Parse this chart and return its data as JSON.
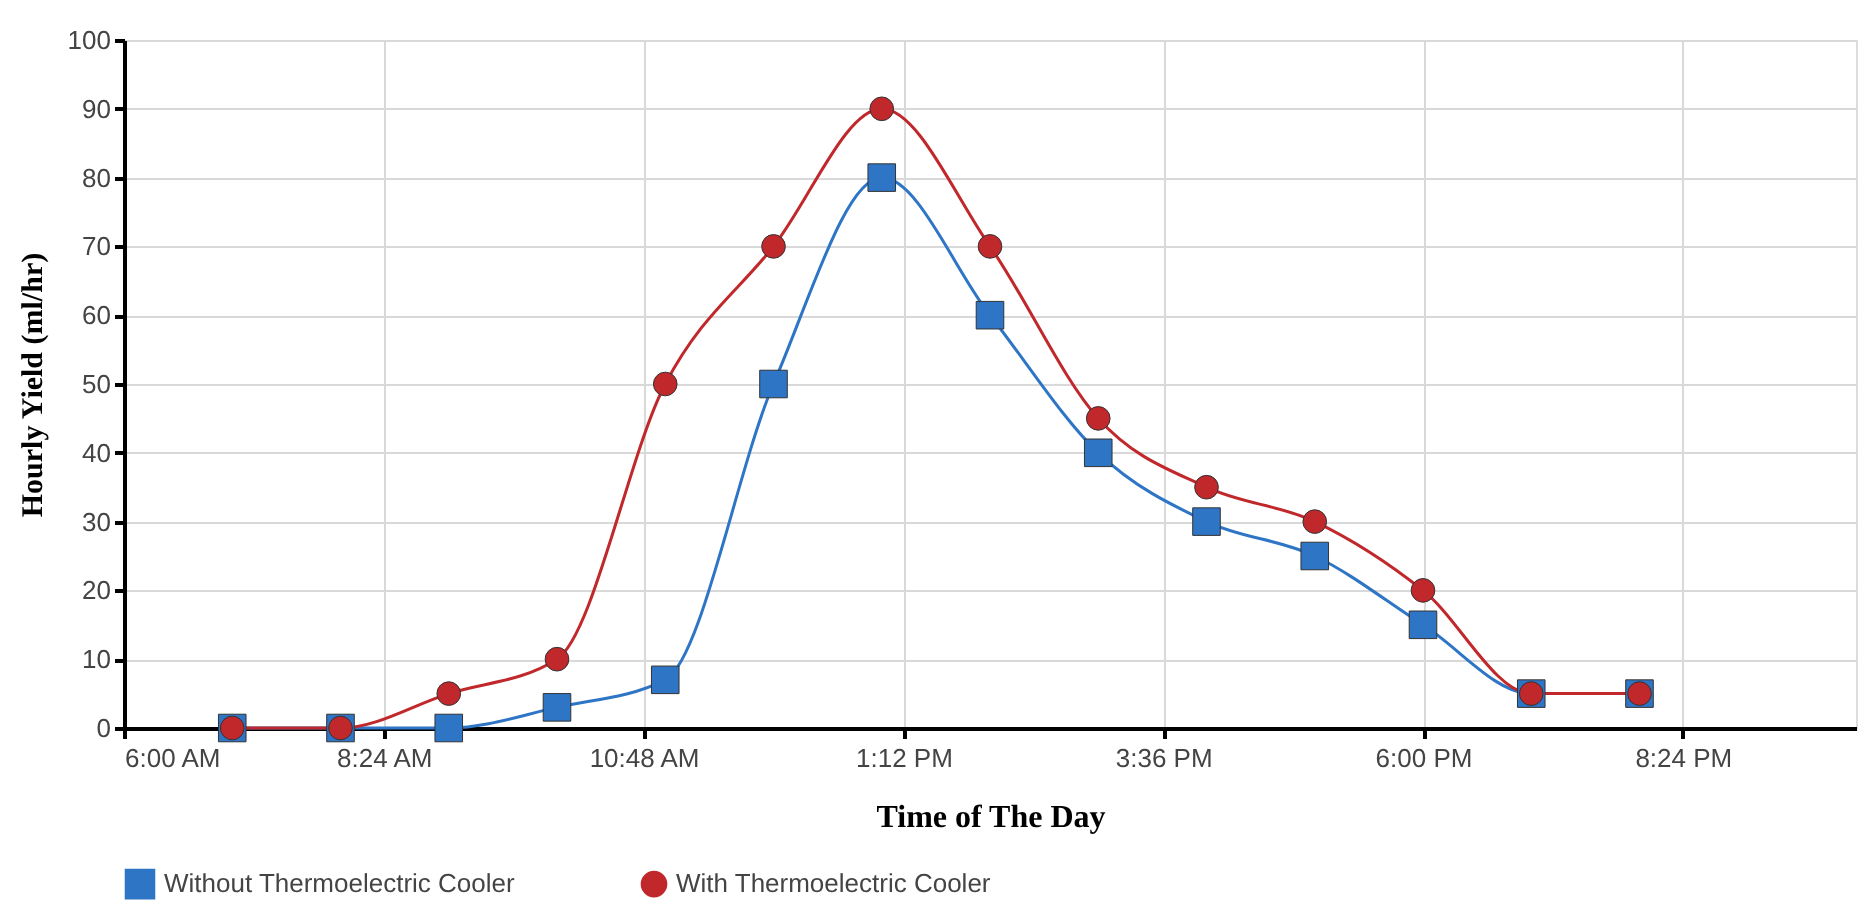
{
  "chart_data": {
    "type": "line",
    "xlabel": "Time of The Day",
    "ylabel": "Hourly Yield  (ml/hr)",
    "x": [
      7,
      8,
      9,
      10,
      11,
      12,
      13,
      14,
      15,
      16,
      17,
      18,
      19,
      20
    ],
    "xlim": [
      6,
      22
    ],
    "xticks": [
      {
        "value": 6,
        "label": "6:00 AM"
      },
      {
        "value": 8.4,
        "label": "8:24 AM"
      },
      {
        "value": 10.8,
        "label": "10:48 AM"
      },
      {
        "value": 13.2,
        "label": "1:12 PM"
      },
      {
        "value": 15.6,
        "label": "3:36 PM"
      },
      {
        "value": 18,
        "label": "6:00 PM"
      },
      {
        "value": 20.4,
        "label": "8:24 PM"
      }
    ],
    "ylim": [
      0,
      100
    ],
    "yticks": [
      0,
      10,
      20,
      30,
      40,
      50,
      60,
      70,
      80,
      90,
      100
    ],
    "series": [
      {
        "name": "Without Thermoelectric Cooler",
        "color": "#2e75c6",
        "marker": "square",
        "values": [
          0,
          0,
          0,
          3,
          7,
          50,
          80,
          60,
          40,
          30,
          25,
          15,
          5,
          5
        ]
      },
      {
        "name": "With Thermoelectric Cooler",
        "color": "#c0282b",
        "marker": "circle",
        "values": [
          0,
          0,
          5,
          10,
          50,
          70,
          90,
          70,
          45,
          35,
          30,
          20,
          5,
          5
        ]
      }
    ],
    "grid": true,
    "legend": "bottom",
    "line_style": "solid"
  }
}
